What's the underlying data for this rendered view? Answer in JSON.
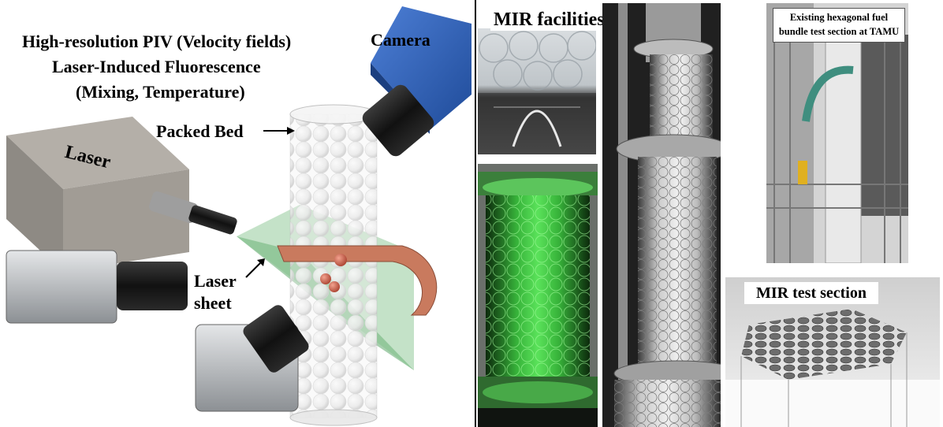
{
  "schematic": {
    "line1": "High-resolution PIV (Velocity fields)",
    "line2": "Laser-Induced Fluorescence",
    "line3": "(Mixing, Temperature)",
    "camera_label": "Camera",
    "laser_label": "Laser",
    "packed_bed_label": "Packed Bed",
    "laser_sheet_line1": "Laser",
    "laser_sheet_line2": "sheet"
  },
  "photos": {
    "mir_facilities_title": "MIR facilities  of PBRs",
    "hex_label_line1": "Existing hexagonal fuel",
    "hex_label_line2": "bundle test section at TAMU",
    "mir_test_section_label": "MIR test section"
  },
  "colors": {
    "camera_blue": "#2f5fb3",
    "laser_gray": "#9a958f",
    "laser_sheet_green": "#6fb07a",
    "ring_copper": "#c97a5e",
    "fluorescence_green": "#3ecf3a"
  }
}
